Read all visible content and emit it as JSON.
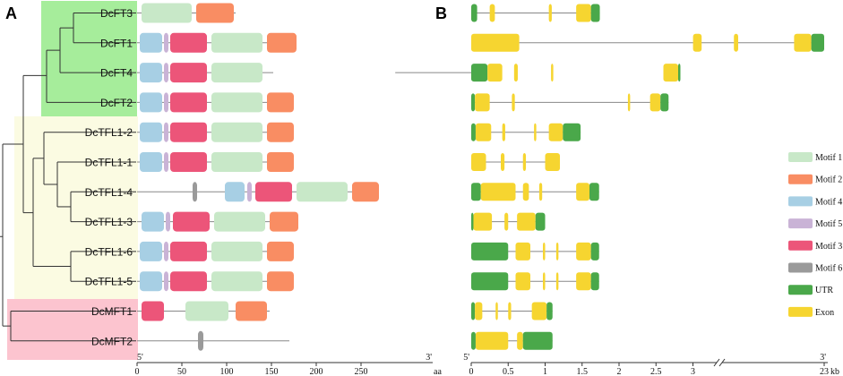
{
  "panels": {
    "a": "A",
    "b": "B"
  },
  "colors": {
    "motif1": "#c8e8c8",
    "motif2": "#f98d63",
    "motif4": "#a7cfe4",
    "motif5": "#c9b3d6",
    "motif3": "#ec5579",
    "motif6": "#9a9a9a",
    "utr": "#4aa84a",
    "exon": "#f6d530",
    "ft_clade": "#a6ed9b",
    "tfl_clade": "#fbfbe2",
    "mft_clade": "#fcc4cf"
  },
  "genes": [
    {
      "name": "DcFT3",
      "length_aa": 110,
      "motifs": [
        [
          "motif1",
          5,
          61
        ],
        [
          "motif2",
          66,
          108
        ]
      ],
      "structure": [
        [
          "utr",
          0,
          0.08
        ],
        [
          "exon",
          0.25,
          0.32
        ],
        [
          "exon",
          1.05,
          1.09
        ],
        [
          "exon",
          1.42,
          1.62
        ],
        [
          "utr",
          1.62,
          1.74
        ]
      ]
    },
    {
      "name": "DcFT1",
      "length_aa": 178,
      "motifs": [
        [
          "motif4",
          3,
          28
        ],
        [
          "motif5",
          30,
          35
        ],
        [
          "motif3",
          37,
          78
        ],
        [
          "motif1",
          83,
          140
        ],
        [
          "motif2",
          145,
          178
        ]
      ],
      "structure": [
        [
          "exon",
          0,
          0.65
        ],
        [
          "exon",
          16.9,
          17.3
        ],
        [
          "exon",
          18.8,
          19.0
        ],
        [
          "exon",
          21.6,
          22.4
        ],
        [
          "utr",
          22.4,
          23.0
        ]
      ]
    },
    {
      "name": "DcFT4",
      "length_aa": 152,
      "motifs": [
        [
          "motif4",
          3,
          28
        ],
        [
          "motif5",
          30,
          35
        ],
        [
          "motif3",
          37,
          78
        ],
        [
          "motif1",
          83,
          140
        ]
      ],
      "structure": [
        [
          "utr",
          0,
          0.22
        ],
        [
          "exon",
          0.22,
          0.42
        ],
        [
          "exon",
          0.58,
          0.63
        ],
        [
          "exon",
          1.08,
          1.1
        ],
        [
          "exon",
          2.6,
          2.8
        ],
        [
          "utr",
          2.8,
          3.05
        ]
      ]
    },
    {
      "name": "DcFT2",
      "length_aa": 175,
      "motifs": [
        [
          "motif4",
          3,
          28
        ],
        [
          "motif5",
          30,
          35
        ],
        [
          "motif3",
          37,
          78
        ],
        [
          "motif1",
          83,
          140
        ],
        [
          "motif2",
          145,
          175
        ]
      ],
      "structure": [
        [
          "utr",
          0,
          0.05
        ],
        [
          "exon",
          0.05,
          0.25
        ],
        [
          "exon",
          0.55,
          0.59
        ],
        [
          "exon",
          2.12,
          2.15
        ],
        [
          "exon",
          2.42,
          2.56
        ],
        [
          "utr",
          2.56,
          2.67
        ]
      ]
    },
    {
      "name": "DcTFL1-2",
      "length_aa": 175,
      "motifs": [
        [
          "motif4",
          3,
          28
        ],
        [
          "motif5",
          30,
          35
        ],
        [
          "motif3",
          37,
          78
        ],
        [
          "motif1",
          83,
          140
        ],
        [
          "motif2",
          145,
          175
        ]
      ],
      "structure": [
        [
          "utr",
          0,
          0.06
        ],
        [
          "exon",
          0.06,
          0.27
        ],
        [
          "exon",
          0.42,
          0.46
        ],
        [
          "exon",
          0.85,
          0.88
        ],
        [
          "exon",
          1.05,
          1.24
        ],
        [
          "utr",
          1.24,
          1.48
        ]
      ]
    },
    {
      "name": "DcTFL1-1",
      "length_aa": 175,
      "motifs": [
        [
          "motif4",
          3,
          28
        ],
        [
          "motif5",
          30,
          35
        ],
        [
          "motif3",
          37,
          78
        ],
        [
          "motif1",
          83,
          140
        ],
        [
          "motif2",
          145,
          175
        ]
      ],
      "structure": [
        [
          "exon",
          0,
          0.2
        ],
        [
          "exon",
          0.4,
          0.45
        ],
        [
          "exon",
          0.7,
          0.74
        ],
        [
          "exon",
          1.0,
          1.2
        ]
      ]
    },
    {
      "name": "DcTFL1-4",
      "length_aa": 270,
      "motifs": [
        [
          "motif6",
          62,
          67
        ],
        [
          "motif4",
          98,
          120
        ],
        [
          "motif5",
          123,
          128
        ],
        [
          "motif3",
          132,
          173
        ],
        [
          "motif1",
          178,
          235
        ],
        [
          "motif2",
          240,
          270
        ]
      ],
      "structure": [
        [
          "utr",
          0,
          0.13
        ],
        [
          "exon",
          0.13,
          0.6
        ],
        [
          "exon",
          0.7,
          0.78
        ],
        [
          "exon",
          0.92,
          0.96
        ],
        [
          "exon",
          1.42,
          1.6
        ],
        [
          "utr",
          1.6,
          1.73
        ]
      ]
    },
    {
      "name": "DcTFL1-3",
      "length_aa": 180,
      "motifs": [
        [
          "motif4",
          5,
          30
        ],
        [
          "motif5",
          32,
          37
        ],
        [
          "motif3",
          40,
          81
        ],
        [
          "motif1",
          86,
          143
        ],
        [
          "motif2",
          148,
          180
        ]
      ],
      "structure": [
        [
          "utr",
          0,
          0.03
        ],
        [
          "exon",
          0.03,
          0.28
        ],
        [
          "exon",
          0.45,
          0.5
        ],
        [
          "exon",
          0.62,
          0.87
        ],
        [
          "utr",
          0.87,
          1.0
        ]
      ]
    },
    {
      "name": "DcTFL1-6",
      "length_aa": 175,
      "motifs": [
        [
          "motif4",
          3,
          28
        ],
        [
          "motif5",
          30,
          35
        ],
        [
          "motif3",
          37,
          78
        ],
        [
          "motif1",
          83,
          140
        ],
        [
          "motif2",
          145,
          175
        ]
      ],
      "structure": [
        [
          "utr",
          0,
          0.5
        ],
        [
          "exon",
          0.6,
          0.8
        ],
        [
          "exon",
          0.97,
          1.0
        ],
        [
          "exon",
          1.15,
          1.18
        ],
        [
          "exon",
          1.42,
          1.62
        ],
        [
          "utr",
          1.62,
          1.73
        ]
      ]
    },
    {
      "name": "DcTFL1-5",
      "length_aa": 175,
      "motifs": [
        [
          "motif4",
          3,
          28
        ],
        [
          "motif5",
          30,
          35
        ],
        [
          "motif3",
          37,
          78
        ],
        [
          "motif1",
          83,
          140
        ],
        [
          "motif2",
          145,
          175
        ]
      ],
      "structure": [
        [
          "utr",
          0,
          0.5
        ],
        [
          "exon",
          0.6,
          0.8
        ],
        [
          "exon",
          0.97,
          1.0
        ],
        [
          "exon",
          1.15,
          1.18
        ],
        [
          "exon",
          1.42,
          1.62
        ],
        [
          "utr",
          1.62,
          1.73
        ]
      ]
    },
    {
      "name": "DcMFT1",
      "length_aa": 148,
      "motifs": [
        [
          "motif3",
          5,
          30
        ],
        [
          "motif1",
          54,
          102
        ],
        [
          "motif2",
          110,
          145
        ]
      ],
      "structure": [
        [
          "utr",
          0,
          0.05
        ],
        [
          "exon",
          0.05,
          0.15
        ],
        [
          "exon",
          0.33,
          0.36
        ],
        [
          "exon",
          0.5,
          0.54
        ],
        [
          "exon",
          0.82,
          1.02
        ],
        [
          "utr",
          1.02,
          1.1
        ]
      ]
    },
    {
      "name": "DcMFT2",
      "length_aa": 170,
      "motifs": [
        [
          "motif6",
          68,
          74
        ]
      ],
      "structure": [
        [
          "utr",
          0,
          0.06
        ],
        [
          "exon",
          0.06,
          0.5
        ],
        [
          "exon",
          0.62,
          0.7
        ],
        [
          "utr",
          0.7,
          1.1
        ]
      ]
    }
  ],
  "axis_a": {
    "ticks": [
      "0",
      "50",
      "100",
      "150",
      "200",
      "250"
    ],
    "tick_values": [
      0,
      50,
      100,
      150,
      200,
      250
    ],
    "unit": "aa",
    "end5": "5'",
    "end3": "3'"
  },
  "axis_b": {
    "ticks": [
      "0",
      "0.5",
      "1",
      "1.5",
      "2",
      "2.5",
      "3",
      "23"
    ],
    "tick_values": [
      0,
      0.5,
      1,
      1.5,
      2,
      2.5,
      3,
      23
    ],
    "unit": "kb",
    "end5": "5'",
    "end3": "3'"
  },
  "legend": [
    {
      "key": "motif1",
      "label": "Motif 1"
    },
    {
      "key": "motif2",
      "label": "Motif 2"
    },
    {
      "key": "motif4",
      "label": "Motif 4"
    },
    {
      "key": "motif5",
      "label": "Motif 5"
    },
    {
      "key": "motif3",
      "label": "Motif 3"
    },
    {
      "key": "motif6",
      "label": "Motif 6"
    },
    {
      "key": "utr",
      "label": "UTR"
    },
    {
      "key": "exon",
      "label": "Exon"
    }
  ]
}
